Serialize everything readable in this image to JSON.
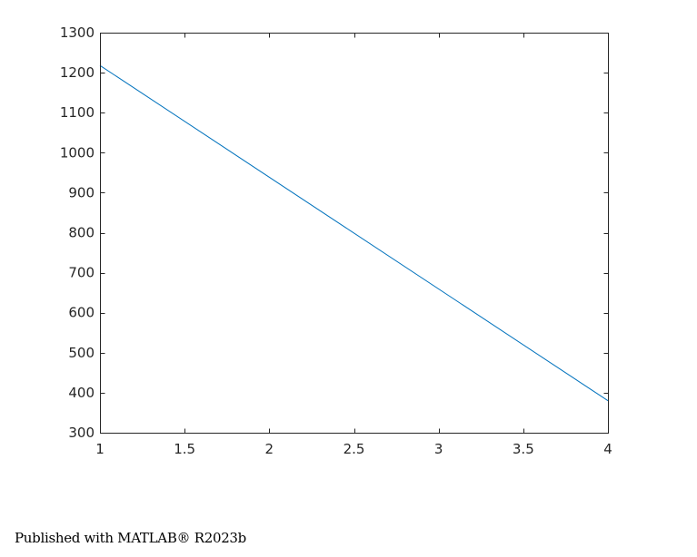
{
  "chart_data": {
    "type": "line",
    "title": "",
    "xlabel": "",
    "ylabel": "",
    "xlim": [
      1,
      4
    ],
    "ylim": [
      300,
      1300
    ],
    "xticks": [
      1,
      1.5,
      2,
      2.5,
      3,
      3.5,
      4
    ],
    "xtick_labels": [
      "1",
      "1.5",
      "2",
      "2.5",
      "3",
      "3.5",
      "4"
    ],
    "yticks": [
      300,
      400,
      500,
      600,
      700,
      800,
      900,
      1000,
      1100,
      1200,
      1300
    ],
    "ytick_labels": [
      "300",
      "400",
      "500",
      "600",
      "700",
      "800",
      "900",
      "1000",
      "1100",
      "1200",
      "1300"
    ],
    "grid": false,
    "box": true,
    "series": [
      {
        "x": [
          1,
          4
        ],
        "y": [
          1218,
          380
        ],
        "color": "#0072BD"
      }
    ]
  },
  "footer": {
    "text": "Published with MATLAB® R2023b"
  }
}
